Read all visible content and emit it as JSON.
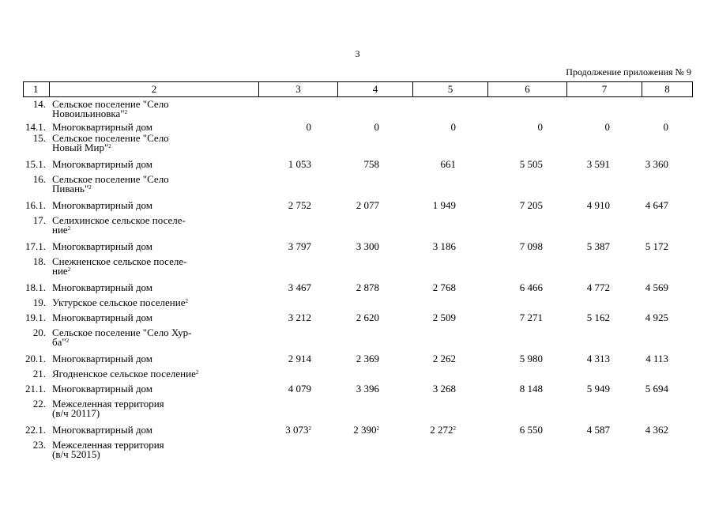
{
  "page_number": "3",
  "continuation_title": "Продолжение приложения № 9",
  "header_columns": [
    "1",
    "2",
    "3",
    "4",
    "5",
    "6",
    "7",
    "8"
  ],
  "rows": [
    {
      "num": "14.",
      "name_lines": [
        "Сельское поселение \"Село",
        "Новоильиновка\""
      ],
      "sup": "2",
      "values": []
    },
    {
      "num": "14.1.",
      "name_lines": [
        "Многоквартирный дом"
      ],
      "sup": "",
      "values": [
        "0",
        "0",
        "0",
        "0",
        "0",
        "0"
      ]
    },
    {
      "num": "15.",
      "name_lines": [
        "Сельское поселение \"Село",
        "Новый Мир\""
      ],
      "sup": "2",
      "values": []
    },
    {
      "num": "15.1.",
      "name_lines": [
        "Многоквартирный дом"
      ],
      "sup": "",
      "values": [
        "1 053",
        "758",
        "661",
        "5 505",
        "3 591",
        "3 360"
      ]
    },
    {
      "num": "16.",
      "name_lines": [
        "Сельское поселение \"Село",
        "Пивань\""
      ],
      "sup": "2",
      "values": []
    },
    {
      "num": "16.1.",
      "name_lines": [
        "Многоквартирный дом"
      ],
      "sup": "",
      "values": [
        "2 752",
        "2 077",
        "1 949",
        "7 205",
        "4 910",
        "4 647"
      ]
    },
    {
      "num": "17.",
      "name_lines": [
        "Селихинское сельское поселе-",
        "ние"
      ],
      "sup": "2",
      "values": []
    },
    {
      "num": "17.1.",
      "name_lines": [
        "Многоквартирный дом"
      ],
      "sup": "",
      "values": [
        "3 797",
        "3 300",
        "3 186",
        "7 098",
        "5 387",
        "5 172"
      ]
    },
    {
      "num": "18.",
      "name_lines": [
        "Снежненское сельское поселе-",
        "ние"
      ],
      "sup": "2",
      "values": []
    },
    {
      "num": "18.1.",
      "name_lines": [
        "Многоквартирный дом"
      ],
      "sup": "",
      "values": [
        "3 467",
        "2 878",
        "2 768",
        "6 466",
        "4 772",
        "4 569"
      ]
    },
    {
      "num": "19.",
      "name_lines": [
        "Уктурское сельское поселение"
      ],
      "sup": "2",
      "values": []
    },
    {
      "num": "19.1.",
      "name_lines": [
        "Многоквартирный дом"
      ],
      "sup": "",
      "values": [
        "3 212",
        "2 620",
        "2 509",
        "7 271",
        "5 162",
        "4 925"
      ]
    },
    {
      "num": "20.",
      "name_lines": [
        "Сельское поселение \"Село Хур-",
        "ба\""
      ],
      "sup": "2",
      "values": []
    },
    {
      "num": "20.1.",
      "name_lines": [
        "Многоквартирный дом"
      ],
      "sup": "",
      "values": [
        "2 914",
        "2 369",
        "2 262",
        "5 980",
        "4 313",
        "4 113"
      ]
    },
    {
      "num": "21.",
      "name_lines": [
        "Ягодненское сельское поселение"
      ],
      "sup": "2",
      "values": []
    },
    {
      "num": "21.1.",
      "name_lines": [
        "Многоквартирный дом"
      ],
      "sup": "",
      "values": [
        "4 079",
        "3 396",
        "3 268",
        "8 148",
        "5 949",
        "5 694"
      ]
    },
    {
      "num": "22.",
      "name_lines": [
        "Межселенная территория",
        "(в/ч 20117)"
      ],
      "sup": "",
      "values": []
    },
    {
      "num": "22.1.",
      "name_lines": [
        "Многоквартирный дом"
      ],
      "sup": "",
      "values": [
        "3 073",
        "2 390",
        "2 272",
        "6 550",
        "4 587",
        "4 362"
      ],
      "value_sups": [
        "2",
        "2",
        "2",
        "",
        "",
        ""
      ]
    },
    {
      "num": "23.",
      "name_lines": [
        "Межселенная территория",
        "(в/ч 52015)"
      ],
      "sup": "",
      "values": []
    }
  ]
}
